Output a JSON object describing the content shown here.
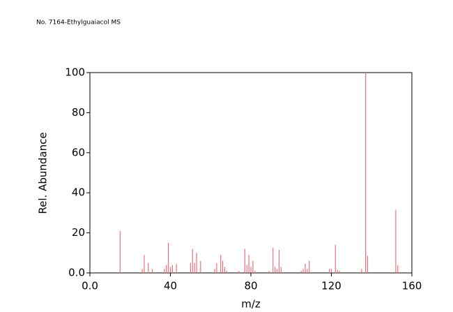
{
  "chart_data": {
    "type": "stem",
    "title": "No. 7164-Ethylguaiacol MS",
    "x_label": "m/z",
    "y_label": "Rel. Abundance",
    "color": "#f0707a",
    "x": [
      15,
      26,
      27,
      29,
      31,
      37,
      38,
      39,
      40,
      41,
      43,
      50,
      51,
      52,
      53,
      55,
      62,
      63,
      65,
      66,
      67,
      68,
      74,
      77,
      78,
      79,
      80,
      81,
      82,
      89,
      91,
      92,
      93,
      94,
      95,
      105,
      106,
      107,
      108,
      109,
      119,
      120,
      122,
      123,
      124,
      135,
      137,
      138,
      152,
      153
    ],
    "values": [
      21,
      2,
      9,
      5,
      2,
      2,
      4,
      15,
      3,
      4,
      4.5,
      5,
      12,
      5,
      10,
      6,
      2,
      5,
      9,
      6,
      3,
      1,
      1,
      12,
      4,
      9,
      3,
      6,
      1,
      1,
      12.5,
      3,
      2,
      11.5,
      3,
      1,
      2,
      4.5,
      2,
      6,
      2,
      2,
      14,
      1.5,
      1,
      2,
      100,
      8.5,
      31.5,
      4
    ],
    "xlim": [
      0,
      160
    ],
    "ylim": [
      0,
      100
    ],
    "xticks": [
      {
        "value": 0,
        "label": "0.0"
      },
      40,
      80,
      120,
      160
    ],
    "yticks": [
      {
        "value": 0,
        "label": "0.0"
      },
      20,
      40,
      60,
      80,
      100
    ]
  }
}
